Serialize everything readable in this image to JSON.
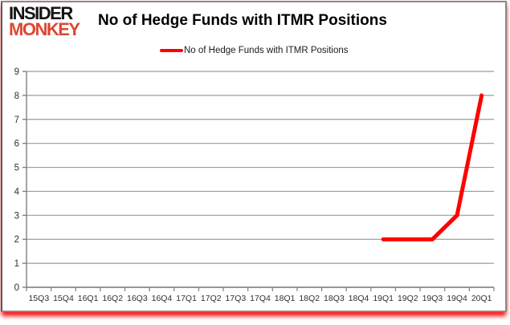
{
  "logo": {
    "line1": "INSIDER",
    "line2": "MONKEY",
    "color_primary": "#161413",
    "color_accent": "#dd4733"
  },
  "title": "No of Hedge Funds with ITMR Positions",
  "legend": {
    "label": "No of Hedge Funds with ITMR Positions",
    "marker_color": "#ff0000"
  },
  "chart_data": {
    "type": "line",
    "title": "No of Hedge Funds with ITMR Positions",
    "categories": [
      "15Q3",
      "15Q4",
      "16Q1",
      "16Q2",
      "16Q3",
      "16Q4",
      "17Q1",
      "17Q2",
      "17Q3",
      "17Q4",
      "18Q1",
      "18Q2",
      "18Q3",
      "18Q4",
      "19Q1",
      "19Q2",
      "19Q3",
      "19Q4",
      "20Q1"
    ],
    "series": [
      {
        "name": "No of Hedge Funds with ITMR Positions",
        "color": "#ff0000",
        "line_width": 5,
        "values": [
          null,
          null,
          null,
          null,
          null,
          null,
          null,
          null,
          null,
          null,
          null,
          null,
          null,
          null,
          2,
          2,
          2,
          3,
          8
        ]
      }
    ],
    "xlabel": "",
    "ylabel": "",
    "ylim": [
      0,
      9
    ],
    "ytick_interval": 1,
    "yticks": [
      0,
      1,
      2,
      3,
      4,
      5,
      6,
      7,
      8,
      9
    ],
    "grid": "horizontal",
    "legend_position": "top-center",
    "styles": {
      "gridline_color": "#9b9b9b",
      "axis_color": "#7f7f7f",
      "tick_label_color": "#303030",
      "background": "#ffffff"
    }
  }
}
